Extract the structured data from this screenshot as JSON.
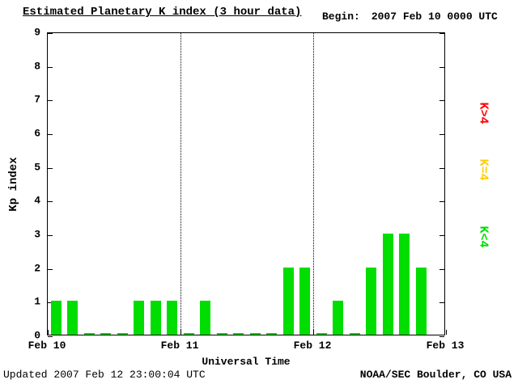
{
  "header": {
    "title": "Estimated Planetary K index (3 hour data)",
    "begin_label": "Begin:",
    "begin_value": "2007 Feb 10 0000 UTC"
  },
  "footer": {
    "updated": "Updated 2007 Feb 12 23:00:04 UTC",
    "source": "NOAA/SEC Boulder, CO USA"
  },
  "legend": [
    {
      "label": "K>4",
      "color": "#ff0000"
    },
    {
      "label": "K=4",
      "color": "#ffcc00"
    },
    {
      "label": "K<4",
      "color": "#00dd00"
    }
  ],
  "chart_data": {
    "type": "bar",
    "title": "Estimated Planetary K index (3 hour data)",
    "xlabel": "Universal Time",
    "ylabel": "Kp index",
    "ylim": [
      0,
      9
    ],
    "yticks": [
      0,
      1,
      2,
      3,
      4,
      5,
      6,
      7,
      8,
      9
    ],
    "xticks": [
      "Feb 10",
      "Feb 11",
      "Feb 12",
      "Feb 13"
    ],
    "interval_hours": 3,
    "bars_per_day": 8,
    "begin": "2007 Feb 10 0000 UTC",
    "bar_color": "#00dd00",
    "values": [
      1,
      1,
      0,
      0,
      0,
      1,
      1,
      1,
      0,
      1,
      0,
      0,
      0,
      0,
      2,
      2,
      0,
      1,
      0,
      2,
      3,
      3,
      2
    ],
    "grid": "vertical dotted lines at day boundaries",
    "legend_position": "right"
  }
}
